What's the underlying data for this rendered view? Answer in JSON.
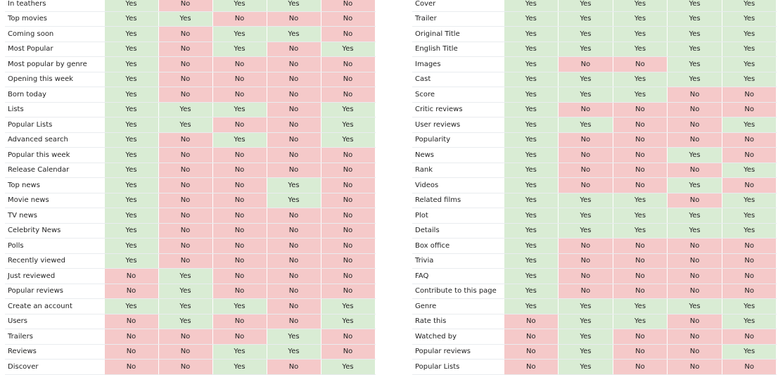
{
  "left_table": {
    "rows": [
      {
        "label": "In teathers",
        "values": [
          "Yes",
          "No",
          "Yes",
          "Yes",
          "No"
        ]
      },
      {
        "label": "Top movies",
        "values": [
          "Yes",
          "Yes",
          "No",
          "No",
          "No"
        ]
      },
      {
        "label": "Coming soon",
        "values": [
          "Yes",
          "No",
          "Yes",
          "Yes",
          "No"
        ]
      },
      {
        "label": "Most Popular",
        "values": [
          "Yes",
          "No",
          "Yes",
          "No",
          "Yes"
        ]
      },
      {
        "label": "Most popular by genre",
        "values": [
          "Yes",
          "No",
          "No",
          "No",
          "No"
        ]
      },
      {
        "label": "Opening this week",
        "values": [
          "Yes",
          "No",
          "No",
          "No",
          "No"
        ]
      },
      {
        "label": "Born today",
        "values": [
          "Yes",
          "No",
          "No",
          "No",
          "No"
        ]
      },
      {
        "label": "Lists",
        "values": [
          "Yes",
          "Yes",
          "Yes",
          "No",
          "Yes"
        ]
      },
      {
        "label": "Popular Lists",
        "values": [
          "Yes",
          "Yes",
          "No",
          "No",
          "Yes"
        ]
      },
      {
        "label": "Advanced search",
        "values": [
          "Yes",
          "No",
          "Yes",
          "No",
          "Yes"
        ]
      },
      {
        "label": "Popular this week",
        "values": [
          "Yes",
          "No",
          "No",
          "No",
          "No"
        ]
      },
      {
        "label": "Release Calendar",
        "values": [
          "Yes",
          "No",
          "No",
          "No",
          "No"
        ]
      },
      {
        "label": "Top news",
        "values": [
          "Yes",
          "No",
          "No",
          "Yes",
          "No"
        ]
      },
      {
        "label": "Movie news",
        "values": [
          "Yes",
          "No",
          "No",
          "Yes",
          "No"
        ]
      },
      {
        "label": "TV news",
        "values": [
          "Yes",
          "No",
          "No",
          "No",
          "No"
        ]
      },
      {
        "label": "Celebrity News",
        "values": [
          "Yes",
          "No",
          "No",
          "No",
          "No"
        ]
      },
      {
        "label": "Polls",
        "values": [
          "Yes",
          "No",
          "No",
          "No",
          "No"
        ]
      },
      {
        "label": "Recently viewed",
        "values": [
          "Yes",
          "No",
          "No",
          "No",
          "No"
        ]
      },
      {
        "label": "Just reviewed",
        "values": [
          "No",
          "Yes",
          "No",
          "No",
          "No"
        ]
      },
      {
        "label": "Popular reviews",
        "values": [
          "No",
          "Yes",
          "No",
          "No",
          "No"
        ]
      },
      {
        "label": "Create an account",
        "values": [
          "Yes",
          "Yes",
          "Yes",
          "No",
          "Yes"
        ]
      },
      {
        "label": "Users",
        "values": [
          "No",
          "Yes",
          "No",
          "No",
          "Yes"
        ]
      },
      {
        "label": "Trailers",
        "values": [
          "No",
          "No",
          "No",
          "Yes",
          "No"
        ]
      },
      {
        "label": "Reviews",
        "values": [
          "No",
          "No",
          "Yes",
          "Yes",
          "No"
        ]
      },
      {
        "label": "Discover",
        "values": [
          "No",
          "No",
          "Yes",
          "No",
          "Yes"
        ]
      }
    ]
  },
  "right_table": {
    "rows": [
      {
        "label": "Cover",
        "values": [
          "Yes",
          "Yes",
          "Yes",
          "Yes",
          "Yes"
        ]
      },
      {
        "label": "Trailer",
        "values": [
          "Yes",
          "Yes",
          "Yes",
          "Yes",
          "Yes"
        ]
      },
      {
        "label": "Original Title",
        "values": [
          "Yes",
          "Yes",
          "Yes",
          "Yes",
          "Yes"
        ]
      },
      {
        "label": "English Title",
        "values": [
          "Yes",
          "Yes",
          "Yes",
          "Yes",
          "Yes"
        ]
      },
      {
        "label": "Images",
        "values": [
          "Yes",
          "No",
          "No",
          "Yes",
          "Yes"
        ]
      },
      {
        "label": "Cast",
        "values": [
          "Yes",
          "Yes",
          "Yes",
          "Yes",
          "Yes"
        ]
      },
      {
        "label": "Score",
        "values": [
          "Yes",
          "Yes",
          "Yes",
          "No",
          "No"
        ]
      },
      {
        "label": "Critic reviews",
        "values": [
          "Yes",
          "No",
          "No",
          "No",
          "No"
        ]
      },
      {
        "label": "User reviews",
        "values": [
          "Yes",
          "Yes",
          "No",
          "No",
          "Yes"
        ]
      },
      {
        "label": "Popularity",
        "values": [
          "Yes",
          "No",
          "No",
          "No",
          "No"
        ]
      },
      {
        "label": "News",
        "values": [
          "Yes",
          "No",
          "No",
          "Yes",
          "No"
        ]
      },
      {
        "label": "Rank",
        "values": [
          "Yes",
          "No",
          "No",
          "No",
          "Yes"
        ]
      },
      {
        "label": "Videos",
        "values": [
          "Yes",
          "No",
          "No",
          "Yes",
          "No"
        ]
      },
      {
        "label": "Related films",
        "values": [
          "Yes",
          "Yes",
          "Yes",
          "No",
          "Yes"
        ]
      },
      {
        "label": "Plot",
        "values": [
          "Yes",
          "Yes",
          "Yes",
          "Yes",
          "Yes"
        ]
      },
      {
        "label": "Details",
        "values": [
          "Yes",
          "Yes",
          "Yes",
          "Yes",
          "Yes"
        ]
      },
      {
        "label": "Box office",
        "values": [
          "Yes",
          "No",
          "No",
          "No",
          "No"
        ]
      },
      {
        "label": "Trivia",
        "values": [
          "Yes",
          "No",
          "No",
          "No",
          "No"
        ]
      },
      {
        "label": "FAQ",
        "values": [
          "Yes",
          "No",
          "No",
          "No",
          "No"
        ]
      },
      {
        "label": "Contribute to this page",
        "values": [
          "Yes",
          "No",
          "No",
          "No",
          "No"
        ]
      },
      {
        "label": "Genre",
        "values": [
          "Yes",
          "Yes",
          "Yes",
          "Yes",
          "Yes"
        ]
      },
      {
        "label": "Rate this",
        "values": [
          "No",
          "Yes",
          "Yes",
          "No",
          "Yes"
        ]
      },
      {
        "label": "Watched by",
        "values": [
          "No",
          "Yes",
          "No",
          "No",
          "No"
        ]
      },
      {
        "label": "Popular reviews",
        "values": [
          "No",
          "Yes",
          "No",
          "No",
          "Yes"
        ]
      },
      {
        "label": "Popular Lists",
        "values": [
          "No",
          "Yes",
          "No",
          "No",
          "No"
        ]
      }
    ]
  },
  "colors": {
    "yes_bg": "#d9ecd4",
    "no_bg": "#f5c9c9",
    "row_divider": "#e9ecef"
  }
}
